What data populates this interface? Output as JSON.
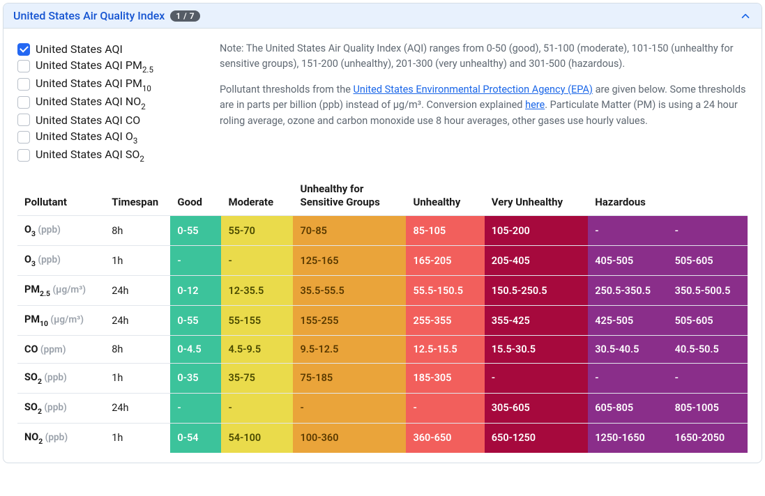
{
  "header": {
    "title": "United States Air Quality Index",
    "badge": "1 / 7"
  },
  "checkboxes": [
    {
      "base": "United States AQI",
      "sub": "",
      "checked": true
    },
    {
      "base": "United States AQI PM",
      "sub": "2.5",
      "checked": false
    },
    {
      "base": "United States AQI PM",
      "sub": "10",
      "checked": false
    },
    {
      "base": "United States AQI NO",
      "sub": "2",
      "checked": false
    },
    {
      "base": "United States AQI CO",
      "sub": "",
      "checked": false
    },
    {
      "base": "United States AQI O",
      "sub": "3",
      "checked": false
    },
    {
      "base": "United States AQI SO",
      "sub": "2",
      "checked": false
    }
  ],
  "note": {
    "p1": "Note: The United States Air Quality Index (AQI) ranges from 0-50 (good), 51-100 (moderate), 101-150 (unhealthy for sensitive groups), 151-200 (unhealthy), 201-300 (very unhealthy) and 301-500 (hazardous).",
    "p2_pre": "Pollutant thresholds from the ",
    "p2_link1": "United States Environmental Protection Agency (EPA)",
    "p2_mid": " are given below. Some thresholds are in parts per billion (ppb) instead of μg/m³. Conversion explained ",
    "p2_link2": "here",
    "p2_post": ". Particulate Matter (PM) is using a 24 hour roling average, ozone and carbon monoxide use 8 hour averages, other gases use hourly values."
  },
  "table": {
    "headers": [
      "Pollutant",
      "Timespan",
      "Good",
      "Moderate",
      "Unhealthy for Sensitive Groups",
      "Unhealthy",
      "Very Unhealthy",
      "Hazardous"
    ],
    "col_widths": [
      "130px",
      "95px",
      "75px",
      "105px",
      "170px",
      "115px",
      "155px",
      "120px",
      "120px"
    ],
    "colors": {
      "good": "#3cc39b",
      "moderate": "#eadb4b",
      "usg": "#eaa43a",
      "unhealthy": "#f25f5c",
      "very": "#a6093d",
      "hazardous": "#8a2e8a"
    },
    "rows": [
      {
        "name": "O",
        "sub": "3",
        "unit": "(ppb)",
        "timespan": "8h",
        "cells": [
          "0-55",
          "55-70",
          "70-85",
          "85-105",
          "105-200",
          "-",
          "-"
        ]
      },
      {
        "name": "O",
        "sub": "3",
        "unit": "(ppb)",
        "timespan": "1h",
        "cells": [
          "-",
          "-",
          "125-165",
          "165-205",
          "205-405",
          "405-505",
          "505-605"
        ]
      },
      {
        "name": "PM",
        "sub": "2.5",
        "unit": "(μg/m³)",
        "timespan": "24h",
        "cells": [
          "0-12",
          "12-35.5",
          "35.5-55.5",
          "55.5-150.5",
          "150.5-250.5",
          "250.5-350.5",
          "350.5-500.5"
        ]
      },
      {
        "name": "PM",
        "sub": "10",
        "unit": "(μg/m³)",
        "timespan": "24h",
        "cells": [
          "0-55",
          "55-155",
          "155-255",
          "255-355",
          "355-425",
          "425-505",
          "505-605"
        ]
      },
      {
        "name": "CO",
        "sub": "",
        "unit": "(ppm)",
        "timespan": "8h",
        "cells": [
          "0-4.5",
          "4.5-9.5",
          "9.5-12.5",
          "12.5-15.5",
          "15.5-30.5",
          "30.5-40.5",
          "40.5-50.5"
        ]
      },
      {
        "name": "SO",
        "sub": "2",
        "unit": "(ppb)",
        "timespan": "1h",
        "cells": [
          "0-35",
          "35-75",
          "75-185",
          "185-305",
          "-",
          "-",
          "-"
        ]
      },
      {
        "name": "SO",
        "sub": "2",
        "unit": "(ppb)",
        "timespan": "24h",
        "cells": [
          "-",
          "-",
          "-",
          "-",
          "305-605",
          "605-805",
          "805-1005"
        ]
      },
      {
        "name": "NO",
        "sub": "2",
        "unit": "(ppb)",
        "timespan": "1h",
        "cells": [
          "0-54",
          "54-100",
          "100-360",
          "360-650",
          "650-1250",
          "1250-1650",
          "1650-2050"
        ]
      }
    ]
  }
}
